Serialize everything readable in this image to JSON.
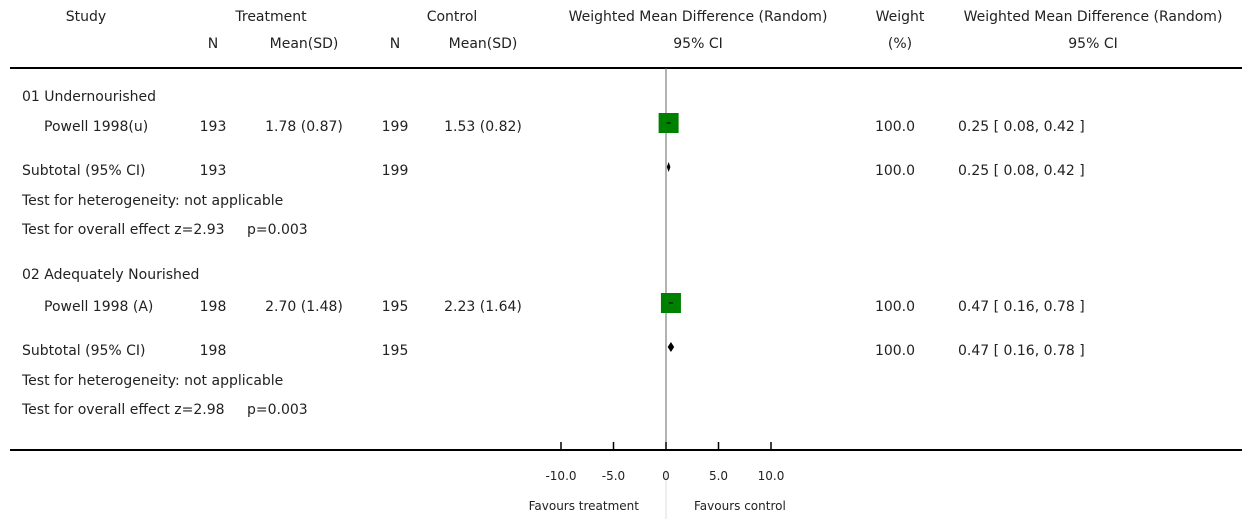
{
  "headers": {
    "study": "Study",
    "treatment": "Treatment",
    "control": "Control",
    "wmd": "Weighted Mean Difference (Random)",
    "weight": "Weight",
    "wmd2": "Weighted Mean Difference (Random)",
    "n_t": "N",
    "mean_t": "Mean(SD)",
    "n_c": "N",
    "mean_c": "Mean(SD)",
    "ci": "95% CI",
    "pct": "(%)",
    "ci2": "95% CI"
  },
  "groups": [
    {
      "title": "01 Undernourished",
      "study": {
        "name": "Powell 1998(u)",
        "n_t": "193",
        "mean_t": "1.78 (0.87)",
        "n_c": "199",
        "mean_c": "1.53 (0.82)",
        "weight": "100.0",
        "ci_text": "0.25 [ 0.08, 0.42 ]"
      },
      "subtotal": {
        "label": "Subtotal (95% CI)",
        "n_t": "193",
        "n_c": "199",
        "weight": "100.0",
        "ci_text": "0.25 [ 0.08, 0.42 ]"
      },
      "heterogeneity": "Test for heterogeneity: not applicable",
      "overall": "Test for overall effect z=2.93",
      "overall_p": "p=0.003"
    },
    {
      "title": "02 Adequately Nourished",
      "study": {
        "name": "Powell 1998 (A)",
        "n_t": "198",
        "mean_t": "2.70 (1.48)",
        "n_c": "195",
        "mean_c": "2.23 (1.64)",
        "weight": "100.0",
        "ci_text": "0.47 [ 0.16, 0.78 ]"
      },
      "subtotal": {
        "label": "Subtotal (95% CI)",
        "n_t": "198",
        "n_c": "195",
        "weight": "100.0",
        "ci_text": "0.47 [ 0.16, 0.78 ]"
      },
      "heterogeneity": "Test for heterogeneity: not applicable",
      "overall": "Test for overall effect z=2.98",
      "overall_p": "p=0.003"
    }
  ],
  "axis": {
    "favours_left": "Favours treatment",
    "favours_right": "Favours control"
  },
  "chart_data": {
    "type": "forest",
    "xlim": [
      -10,
      10
    ],
    "ticks": [
      -10,
      -5,
      0,
      5,
      10
    ],
    "tick_labels": [
      "-10.0",
      "-5.0",
      "0",
      "5.0",
      "10.0"
    ],
    "marker_color": "#008000",
    "rows": [
      {
        "label": "Powell 1998(u)",
        "kind": "study",
        "estimate": 0.25,
        "lower": 0.08,
        "upper": 0.42,
        "weight": 100.0
      },
      {
        "label": "Subtotal (95% CI)",
        "kind": "subtotal",
        "estimate": 0.25,
        "lower": 0.08,
        "upper": 0.42,
        "weight": 100.0
      },
      {
        "label": "Powell 1998 (A)",
        "kind": "study",
        "estimate": 0.47,
        "lower": 0.16,
        "upper": 0.78,
        "weight": 100.0
      },
      {
        "label": "Subtotal (95% CI)",
        "kind": "subtotal",
        "estimate": 0.47,
        "lower": 0.16,
        "upper": 0.78,
        "weight": 100.0
      }
    ]
  }
}
